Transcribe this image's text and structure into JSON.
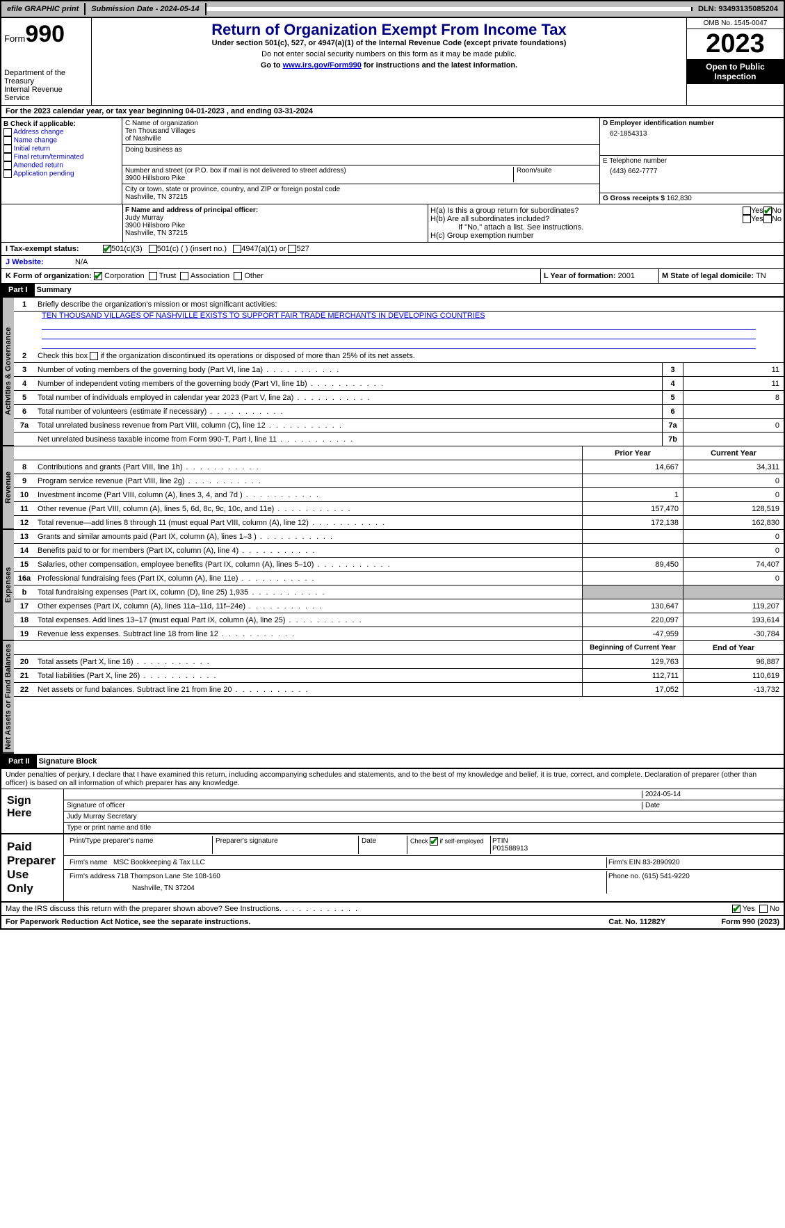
{
  "topbar": {
    "efile": "efile GRAPHIC print",
    "submission": "Submission Date - 2024-05-14",
    "dln": "DLN: 93493135085204"
  },
  "header": {
    "form_label": "Form",
    "form_num": "990",
    "dept": "Department of the Treasury",
    "irs": "Internal Revenue Service",
    "title": "Return of Organization Exempt From Income Tax",
    "sub1": "Under section 501(c), 527, or 4947(a)(1) of the Internal Revenue Code (except private foundations)",
    "sub2": "Do not enter social security numbers on this form as it may be made public.",
    "sub3_pre": "Go to ",
    "sub3_link": "www.irs.gov/Form990",
    "sub3_post": " for instructions and the latest information.",
    "omb": "OMB No. 1545-0047",
    "year": "2023",
    "open": "Open to Public Inspection"
  },
  "taxyear": "For the 2023 calendar year, or tax year beginning 04-01-2023   , and ending 03-31-2024",
  "boxB": {
    "label": "B Check if applicable:",
    "items": [
      "Address change",
      "Name change",
      "Initial return",
      "Final return/terminated",
      "Amended return",
      "Application pending"
    ]
  },
  "boxC": {
    "name_lbl": "C Name of organization",
    "name1": "Ten Thousand Villages",
    "name2": "of Nashville",
    "dba_lbl": "Doing business as",
    "addr_lbl": "Number and street (or P.O. box if mail is not delivered to street address)",
    "room_lbl": "Room/suite",
    "addr": "3900 Hillsboro Pike",
    "city_lbl": "City or town, state or province, country, and ZIP or foreign postal code",
    "city": "Nashville, TN  37215"
  },
  "boxD": {
    "lbl": "D Employer identification number",
    "val": "62-1854313"
  },
  "boxE": {
    "lbl": "E Telephone number",
    "val": "(443) 662-7777"
  },
  "boxG": {
    "lbl": "G Gross receipts $ ",
    "val": "162,830"
  },
  "boxF": {
    "lbl": "F  Name and address of principal officer:",
    "l1": "Judy Murray",
    "l2": "3900 Hillsboro Pike",
    "l3": "Nashville, TN  37215"
  },
  "boxH": {
    "a": "H(a)  Is this a group return for subordinates?",
    "b": "H(b)  Are all subordinates included?",
    "b2": "If \"No,\" attach a list. See instructions.",
    "c": "H(c)  Group exemption number"
  },
  "rowI": {
    "lbl": "I   Tax-exempt status:",
    "o1": "501(c)(3)",
    "o2": "501(c) (  ) (insert no.)",
    "o3": "4947(a)(1) or",
    "o4": "527"
  },
  "rowJ": {
    "lbl": "J   Website:",
    "val": "N/A"
  },
  "rowK": {
    "lbl": "K Form of organization:",
    "o1": "Corporation",
    "o2": "Trust",
    "o3": "Association",
    "o4": "Other"
  },
  "rowL": {
    "lbl": "L Year of formation: ",
    "val": "2001"
  },
  "rowM": {
    "lbl": "M State of legal domicile: ",
    "val": "TN"
  },
  "part1": {
    "hdr": "Part I",
    "title": "Summary"
  },
  "summary": {
    "tab_gov": "Activities & Governance",
    "tab_rev": "Revenue",
    "tab_exp": "Expenses",
    "tab_net": "Net Assets or Fund Balances",
    "l1": "Briefly describe the organization's mission or most significant activities:",
    "mission": "TEN THOUSAND VILLAGES OF NASHVILLE EXISTS TO SUPPORT FAIR TRADE MERCHANTS IN DEVELOPING COUNTRIES",
    "l2": "Check this box       if the organization discontinued its operations or disposed of more than 25% of its net assets.",
    "rows_gov": [
      {
        "n": "3",
        "t": "Number of voting members of the governing body (Part VI, line 1a)",
        "b": "3",
        "v": "11"
      },
      {
        "n": "4",
        "t": "Number of independent voting members of the governing body (Part VI, line 1b)",
        "b": "4",
        "v": "11"
      },
      {
        "n": "5",
        "t": "Total number of individuals employed in calendar year 2023 (Part V, line 2a)",
        "b": "5",
        "v": "8"
      },
      {
        "n": "6",
        "t": "Total number of volunteers (estimate if necessary)",
        "b": "6",
        "v": ""
      },
      {
        "n": "7a",
        "t": "Total unrelated business revenue from Part VIII, column (C), line 12",
        "b": "7a",
        "v": "0"
      },
      {
        "n": "",
        "t": "Net unrelated business taxable income from Form 990-T, Part I, line 11",
        "b": "7b",
        "v": ""
      }
    ],
    "hdr_prior": "Prior Year",
    "hdr_curr": "Current Year",
    "rows_rev": [
      {
        "n": "8",
        "t": "Contributions and grants (Part VIII, line 1h)",
        "p": "14,667",
        "c": "34,311"
      },
      {
        "n": "9",
        "t": "Program service revenue (Part VIII, line 2g)",
        "p": "",
        "c": "0"
      },
      {
        "n": "10",
        "t": "Investment income (Part VIII, column (A), lines 3, 4, and 7d )",
        "p": "1",
        "c": "0"
      },
      {
        "n": "11",
        "t": "Other revenue (Part VIII, column (A), lines 5, 6d, 8c, 9c, 10c, and 11e)",
        "p": "157,470",
        "c": "128,519"
      },
      {
        "n": "12",
        "t": "Total revenue—add lines 8 through 11 (must equal Part VIII, column (A), line 12)",
        "p": "172,138",
        "c": "162,830"
      }
    ],
    "rows_exp": [
      {
        "n": "13",
        "t": "Grants and similar amounts paid (Part IX, column (A), lines 1–3 )",
        "p": "",
        "c": "0"
      },
      {
        "n": "14",
        "t": "Benefits paid to or for members (Part IX, column (A), line 4)",
        "p": "",
        "c": "0"
      },
      {
        "n": "15",
        "t": "Salaries, other compensation, employee benefits (Part IX, column (A), lines 5–10)",
        "p": "89,450",
        "c": "74,407"
      },
      {
        "n": "16a",
        "t": "Professional fundraising fees (Part IX, column (A), line 11e)",
        "p": "",
        "c": "0"
      },
      {
        "n": "b",
        "t": "Total fundraising expenses (Part IX, column (D), line 25) 1,935",
        "p": "shade",
        "c": "shade"
      },
      {
        "n": "17",
        "t": "Other expenses (Part IX, column (A), lines 11a–11d, 11f–24e)",
        "p": "130,647",
        "c": "119,207"
      },
      {
        "n": "18",
        "t": "Total expenses. Add lines 13–17 (must equal Part IX, column (A), line 25)",
        "p": "220,097",
        "c": "193,614"
      },
      {
        "n": "19",
        "t": "Revenue less expenses. Subtract line 18 from line 12",
        "p": "-47,959",
        "c": "-30,784"
      }
    ],
    "hdr_beg": "Beginning of Current Year",
    "hdr_end": "End of Year",
    "rows_net": [
      {
        "n": "20",
        "t": "Total assets (Part X, line 16)",
        "p": "129,763",
        "c": "96,887"
      },
      {
        "n": "21",
        "t": "Total liabilities (Part X, line 26)",
        "p": "112,711",
        "c": "110,619"
      },
      {
        "n": "22",
        "t": "Net assets or fund balances. Subtract line 21 from line 20",
        "p": "17,052",
        "c": "-13,732"
      }
    ]
  },
  "part2": {
    "hdr": "Part II",
    "title": "Signature Block"
  },
  "penalties": "Under penalties of perjury, I declare that I have examined this return, including accompanying schedules and statements, and to the best of my knowledge and belief, it is true, correct, and complete. Declaration of preparer (other than officer) is based on all information of which preparer has any knowledge.",
  "sign": {
    "lbl": "Sign Here",
    "date": "2024-05-14",
    "sig_lbl": "Signature of officer",
    "date_lbl": "Date",
    "name": "Judy Murray  Secretary",
    "type_lbl": "Type or print name and title"
  },
  "paid": {
    "lbl": "Paid Preparer Use Only",
    "h1": "Print/Type preparer's name",
    "h2": "Preparer's signature",
    "h3": "Date",
    "h4_pre": "Check         if self-employed",
    "h5": "PTIN",
    "ptin": "P01588913",
    "firm_lbl": "Firm's name",
    "firm": "MSC Bookkeeping & Tax LLC",
    "ein_lbl": "Firm's EIN ",
    "ein": "83-2890920",
    "addr_lbl": "Firm's address ",
    "addr1": "718 Thompson Lane Ste 108-160",
    "addr2": "Nashville, TN  37204",
    "phone_lbl": "Phone no. ",
    "phone": "(615) 541-9220"
  },
  "discuss": "May the IRS discuss this return with the preparer shown above? See Instructions.",
  "footer": {
    "l": "For Paperwork Reduction Act Notice, see the separate instructions.",
    "m": "Cat. No. 11282Y",
    "r": "Form 990 (2023)"
  },
  "yn": {
    "yes": "Yes",
    "no": "No"
  }
}
